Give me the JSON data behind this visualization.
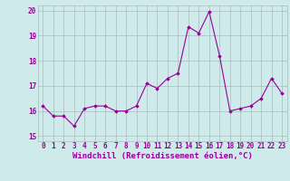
{
  "x": [
    0,
    1,
    2,
    3,
    4,
    5,
    6,
    7,
    8,
    9,
    10,
    11,
    12,
    13,
    14,
    15,
    16,
    17,
    18,
    19,
    20,
    21,
    22,
    23
  ],
  "y": [
    16.2,
    15.8,
    15.8,
    15.4,
    16.1,
    16.2,
    16.2,
    16.0,
    16.0,
    16.2,
    17.1,
    16.9,
    17.3,
    17.5,
    19.35,
    19.1,
    19.95,
    18.2,
    16.0,
    16.1,
    16.2,
    16.5,
    17.3,
    16.7
  ],
  "line_color": "#990099",
  "marker": "D",
  "marker_size": 1.8,
  "bg_color": "#ceeaea",
  "grid_color": "#aabbbb",
  "xlabel": "Windchill (Refroidissement éolien,°C)",
  "ylim": [
    14.8,
    20.2
  ],
  "xlim": [
    -0.5,
    23.5
  ],
  "yticks": [
    15,
    16,
    17,
    18,
    19,
    20
  ],
  "xtick_labels": [
    "0",
    "1",
    "2",
    "3",
    "4",
    "5",
    "6",
    "7",
    "8",
    "9",
    "10",
    "11",
    "12",
    "13",
    "14",
    "15",
    "16",
    "17",
    "18",
    "19",
    "20",
    "21",
    "22",
    "23"
  ],
  "font_color": "#990099",
  "tick_font_size": 5.5,
  "xlabel_font_size": 6.5
}
